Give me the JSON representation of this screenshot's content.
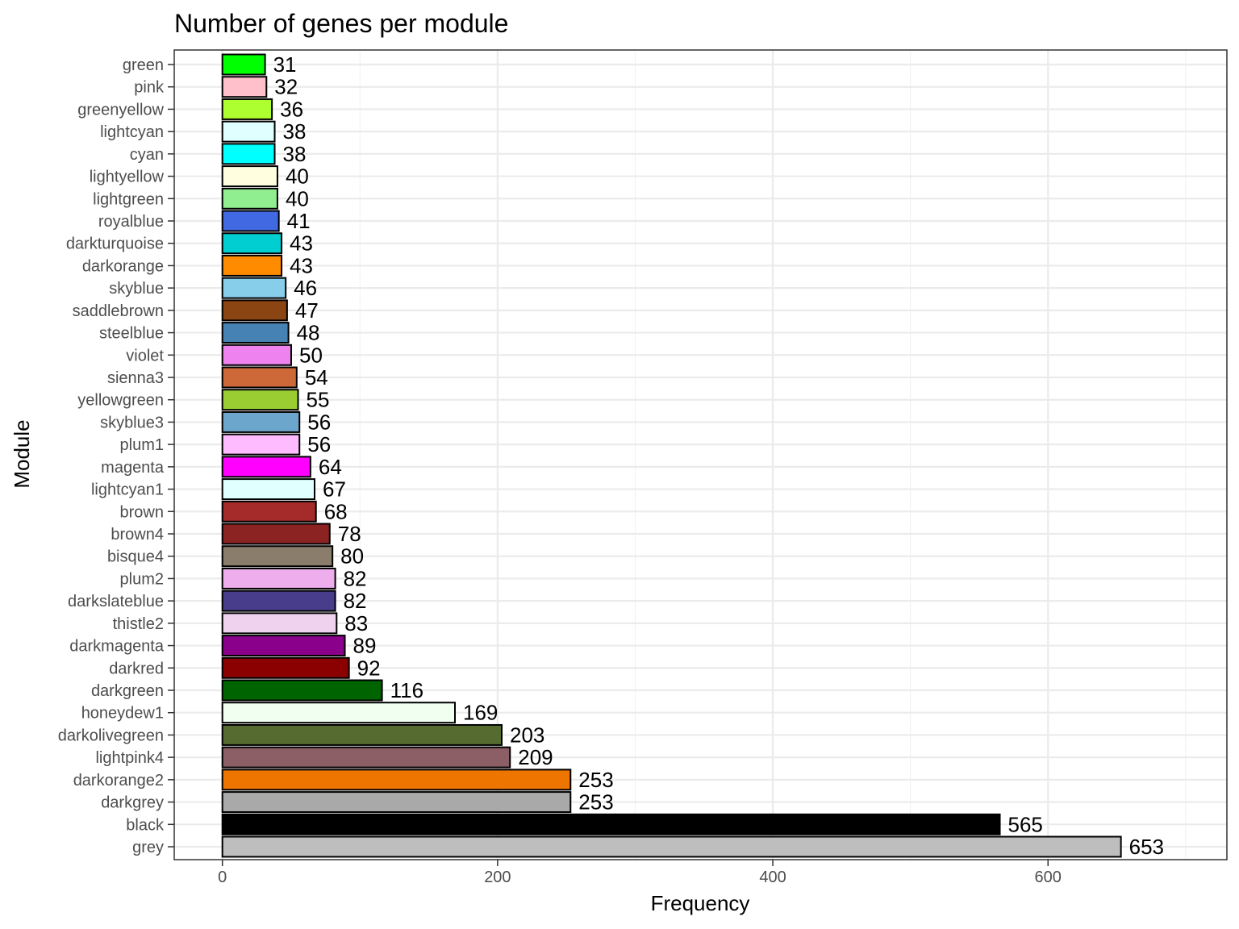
{
  "chart_data": {
    "type": "bar",
    "orientation": "horizontal",
    "title": "Number of genes per module",
    "xlabel": "Frequency",
    "ylabel": "Module",
    "xlim": [
      -35,
      730
    ],
    "xticks": [
      0,
      200,
      400,
      600
    ],
    "grid": true,
    "categories": [
      "green",
      "pink",
      "greenyellow",
      "lightcyan",
      "cyan",
      "lightyellow",
      "lightgreen",
      "royalblue",
      "darkturquoise",
      "darkorange",
      "skyblue",
      "saddlebrown",
      "steelblue",
      "violet",
      "sienna3",
      "yellowgreen",
      "skyblue3",
      "plum1",
      "magenta",
      "lightcyan1",
      "brown",
      "brown4",
      "bisque4",
      "plum2",
      "darkslateblue",
      "thistle2",
      "darkmagenta",
      "darkred",
      "darkgreen",
      "honeydew1",
      "darkolivegreen",
      "lightpink4",
      "darkorange2",
      "darkgrey",
      "black",
      "grey"
    ],
    "values": [
      31,
      32,
      36,
      38,
      38,
      40,
      40,
      41,
      43,
      43,
      46,
      47,
      48,
      50,
      54,
      55,
      56,
      56,
      64,
      67,
      68,
      78,
      80,
      82,
      82,
      83,
      89,
      92,
      116,
      169,
      203,
      209,
      253,
      253,
      565,
      653
    ],
    "colors": [
      "#00FF00",
      "#FFC0CB",
      "#ADFF2F",
      "#E0FFFF",
      "#00FFFF",
      "#FFFFE0",
      "#90EE90",
      "#4169E1",
      "#00CED1",
      "#FF8C00",
      "#87CEEB",
      "#8B4513",
      "#4682B4",
      "#EE82EE",
      "#CD6839",
      "#9ACD32",
      "#6CA6CD",
      "#FFBBFF",
      "#FF00FF",
      "#E0FFFF",
      "#A52A2A",
      "#8B2323",
      "#8B7D6B",
      "#EEAEEE",
      "#483D8B",
      "#EED2EE",
      "#8B008B",
      "#8B0000",
      "#006400",
      "#F0FFF0",
      "#556B2F",
      "#8B5F65",
      "#EE7600",
      "#A9A9A9",
      "#000000",
      "#BEBEBE"
    ]
  }
}
